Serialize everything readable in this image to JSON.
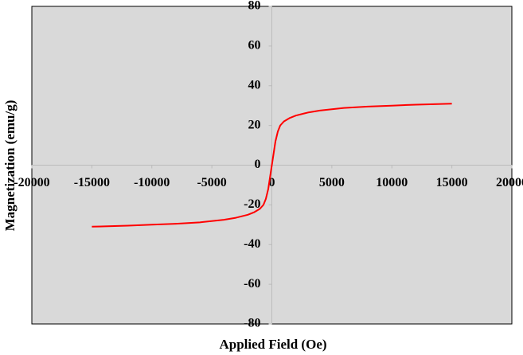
{
  "chart_data": {
    "type": "line",
    "x_label": "Applied Field (Oe)",
    "y_label": "Magnetization (emu/g)",
    "x": [
      -15000,
      -12000,
      -10000,
      -8000,
      -6000,
      -4000,
      -3000,
      -2000,
      -1500,
      -1000,
      -700,
      -500,
      -300,
      -150,
      0,
      150,
      300,
      500,
      700,
      1000,
      1500,
      2000,
      3000,
      4000,
      6000,
      8000,
      10000,
      12000,
      15000
    ],
    "values": [
      -31,
      -30.5,
      -30,
      -29.5,
      -28.8,
      -27.5,
      -26.5,
      -25,
      -23.8,
      -22,
      -20,
      -17,
      -12,
      -6,
      0,
      6,
      12,
      17,
      20,
      22,
      23.8,
      25,
      26.5,
      27.5,
      28.8,
      29.5,
      30,
      30.5,
      31
    ],
    "color": "#ff0000",
    "xlim": [
      -20000,
      20000
    ],
    "xticks": [
      -20000,
      -15000,
      -10000,
      -5000,
      0,
      5000,
      10000,
      15000,
      20000
    ],
    "ylim": [
      -80,
      80
    ],
    "yticks": [
      -80,
      -60,
      -40,
      -20,
      0,
      20,
      40,
      60,
      80
    ]
  }
}
